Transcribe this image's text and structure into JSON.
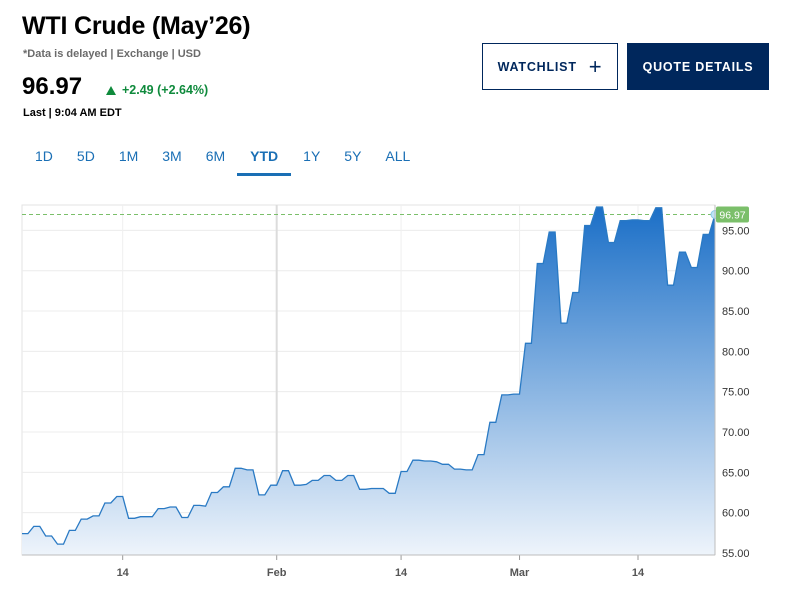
{
  "header": {
    "title": "WTI Crude (May’26)",
    "subnote": "*Data is delayed | Exchange | USD",
    "price": "96.97",
    "change": "+2.49 (+2.64%)",
    "last_time": "Last | 9:04 AM EDT"
  },
  "buttons": {
    "watchlist": "WATCHLIST",
    "watchlist_icon": "plus-icon",
    "quote_details": "QUOTE DETAILS"
  },
  "tabs": [
    {
      "label": "1D",
      "active": false
    },
    {
      "label": "5D",
      "active": false
    },
    {
      "label": "1M",
      "active": false
    },
    {
      "label": "3M",
      "active": false
    },
    {
      "label": "6M",
      "active": false
    },
    {
      "label": "YTD",
      "active": true
    },
    {
      "label": "1Y",
      "active": false
    },
    {
      "label": "5Y",
      "active": false
    },
    {
      "label": "ALL",
      "active": false
    }
  ],
  "colors": {
    "accent": "#1a6fb5",
    "navy": "#00275c",
    "up": "#0f8a3c",
    "last_label_bg": "#7bbf6a",
    "area_top": "#1b6fc7",
    "area_bottom": "#eef4fb"
  },
  "chart_data": {
    "type": "area",
    "title": "",
    "xlabel": "",
    "ylabel": "",
    "ylim": [
      54.5,
      97.9
    ],
    "y_ticks": [
      "55.00",
      "60.00",
      "65.00",
      "70.00",
      "75.00",
      "80.00",
      "85.00",
      "90.00",
      "95.00"
    ],
    "x_ticks": [
      "14",
      "Feb",
      "14",
      "Mar",
      "14"
    ],
    "last_value": "96.97",
    "grid": true,
    "values": [
      57.4,
      57.4,
      58.3,
      58.3,
      57.1,
      57.1,
      56.1,
      56.1,
      57.8,
      57.8,
      59.2,
      59.2,
      59.6,
      59.6,
      61.2,
      61.2,
      62.0,
      62.0,
      59.3,
      59.3,
      59.5,
      59.5,
      59.5,
      60.5,
      60.5,
      60.7,
      60.7,
      59.4,
      59.4,
      60.9,
      60.9,
      60.8,
      62.5,
      62.5,
      63.2,
      63.2,
      65.5,
      65.5,
      65.3,
      65.3,
      62.2,
      62.2,
      63.4,
      63.4,
      65.2,
      65.2,
      63.4,
      63.4,
      63.5,
      64.0,
      64.0,
      64.6,
      64.6,
      64.0,
      64.0,
      64.6,
      64.6,
      62.9,
      62.9,
      63.0,
      63.0,
      63.0,
      62.4,
      62.4,
      65.1,
      65.1,
      66.5,
      66.5,
      66.4,
      66.4,
      66.3,
      66.0,
      66.0,
      65.4,
      65.4,
      65.3,
      65.3,
      67.2,
      67.2,
      71.2,
      71.2,
      74.6,
      74.6,
      74.7,
      74.7,
      81.0,
      81.0,
      90.9,
      90.9,
      94.8,
      94.8,
      83.5,
      83.5,
      87.3,
      87.3,
      95.6,
      95.6,
      97.9,
      97.9,
      93.5,
      93.5,
      96.2,
      96.2,
      96.3,
      96.3,
      96.2,
      96.2,
      97.8,
      97.8,
      88.2,
      88.2,
      92.3,
      92.3,
      90.4,
      90.4,
      94.5,
      94.5,
      96.97
    ]
  }
}
